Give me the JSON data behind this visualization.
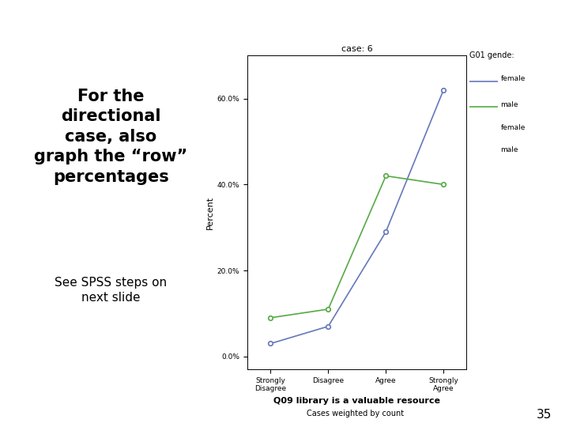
{
  "title": "case: 6",
  "xlabel": "Q09 library is a valuable resource",
  "ylabel": "Percent",
  "subtitle": "Cases weighted by count",
  "legend_title": "G01 gende:",
  "categories": [
    "Strongly\nDisagree",
    "Disagree",
    "Agree",
    "Strongly\nAgree"
  ],
  "female_values": [
    3.0,
    7.0,
    29.0,
    62.0
  ],
  "male_values": [
    9.0,
    11.0,
    42.0,
    40.0
  ],
  "female_color": "#6677bb",
  "male_color": "#55aa44",
  "ylim": [
    -3,
    70
  ],
  "yticks": [
    0,
    20,
    40,
    60
  ],
  "ytick_labels": [
    "0.0%",
    "20.0%",
    "40.0%",
    "60.0%"
  ],
  "left_text_main": "For the\ndirectional\ncase, also\ngraph the “row”\npercentages",
  "left_text_sub": "See SPSS steps on\nnext slide",
  "page_number": "35",
  "bg_color": "#ffffff"
}
